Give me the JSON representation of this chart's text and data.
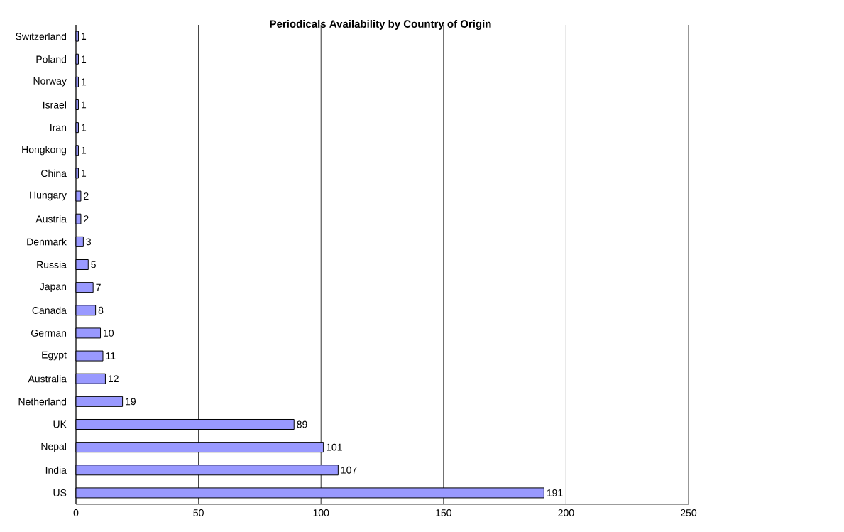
{
  "chart_data": {
    "type": "bar",
    "orientation": "horizontal",
    "title": "Periodicals Availability by Country of Origin",
    "categories": [
      "Switzerland",
      "Poland",
      "Norway",
      "Israel",
      "Iran",
      "Hongkong",
      "China",
      "Hungary",
      "Austria",
      "Denmark",
      "Russia",
      "Japan",
      "Canada",
      "German",
      "Egypt",
      "Australia",
      "Netherland",
      "UK",
      "Nepal",
      "India",
      "US"
    ],
    "values": [
      1,
      1,
      1,
      1,
      1,
      1,
      1,
      2,
      2,
      3,
      5,
      7,
      8,
      10,
      11,
      12,
      19,
      89,
      101,
      107,
      191
    ],
    "color": "#9999ff",
    "xlim": [
      0,
      250
    ],
    "xticks": [
      0,
      50,
      100,
      150,
      200,
      250
    ],
    "grid": "x",
    "data_labels": true
  }
}
